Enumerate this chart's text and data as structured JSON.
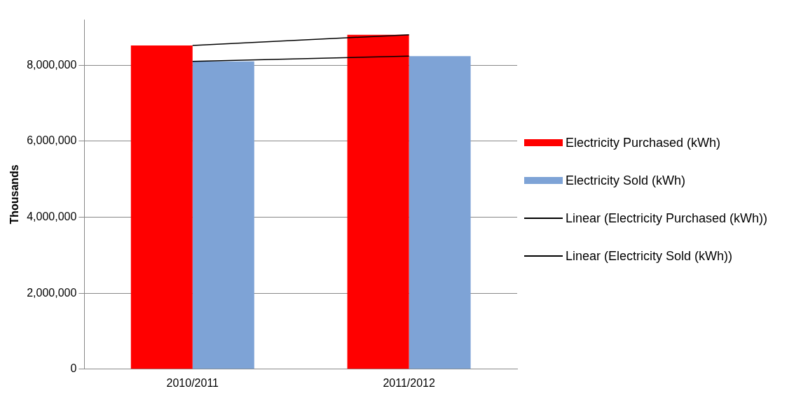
{
  "chart_data": {
    "type": "bar",
    "ylabel": "Thousands",
    "categories": [
      "2010/2011",
      "2011/2012"
    ],
    "series": [
      {
        "name": "Electricity Purchased (kWh)",
        "color": "#ff0000",
        "values": [
          8520000,
          8800000
        ]
      },
      {
        "name": "Electricity Sold (kWh)",
        "color": "#7ea3d6",
        "values": [
          8100000,
          8240000
        ]
      },
      {
        "name": "Linear (Electricity Purchased (kWh))",
        "type": "line",
        "color": "#000000",
        "values": [
          8520000,
          8800000
        ]
      },
      {
        "name": "Linear (Electricity Sold (kWh))",
        "type": "line",
        "color": "#000000",
        "values": [
          8100000,
          8240000
        ]
      }
    ],
    "ylim": [
      0,
      9200000
    ],
    "yticks": [
      {
        "value": 0,
        "label": "0"
      },
      {
        "value": 2000000,
        "label": "2,000,000"
      },
      {
        "value": 4000000,
        "label": "4,000,000"
      },
      {
        "value": 6000000,
        "label": "6,000,000"
      },
      {
        "value": 8000000,
        "label": "8,000,000"
      }
    ],
    "grid": "y",
    "legend": "right"
  }
}
